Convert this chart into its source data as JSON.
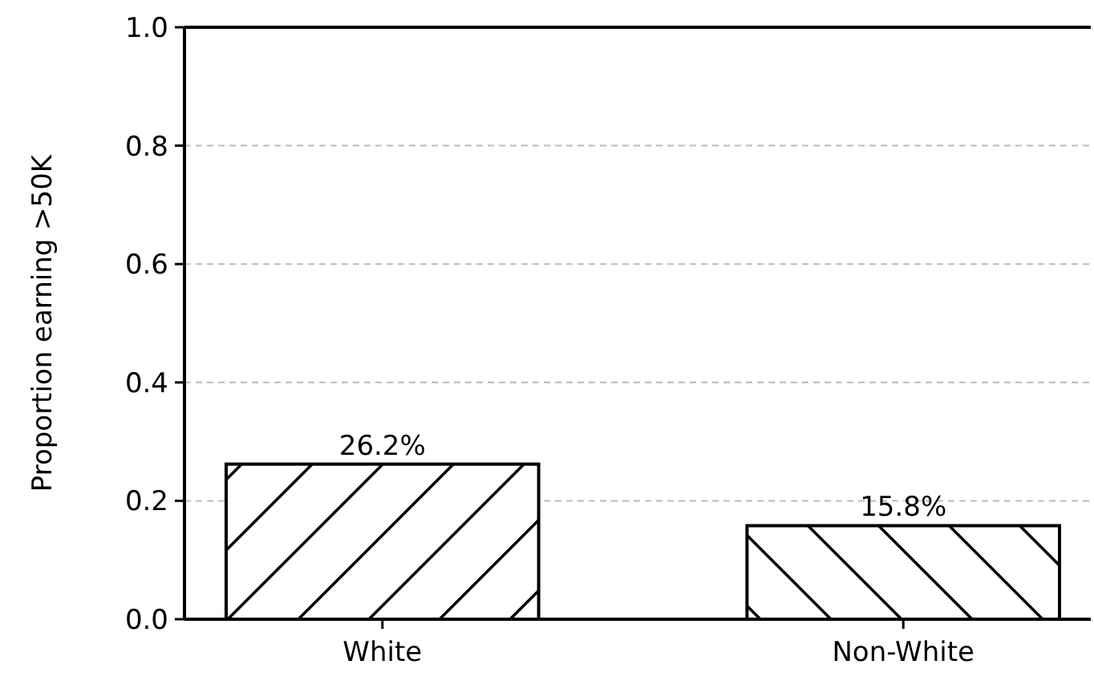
{
  "chart_data": {
    "type": "bar",
    "ylabel": "Proportion earning >50K",
    "categories": [
      "White",
      "Non-White"
    ],
    "values": [
      0.262,
      0.158
    ],
    "colors": [
      "#ffffff",
      "#ffffff"
    ],
    "value_labels": [
      "26.2%",
      "15.8%"
    ],
    "ylim": [
      0,
      1
    ],
    "yticks": [
      {
        "value": 0,
        "label": "0.0"
      },
      0.2,
      0.4,
      0.6,
      0.8,
      {
        "value": 1,
        "label": "1.0"
      }
    ],
    "grid": "y"
  }
}
